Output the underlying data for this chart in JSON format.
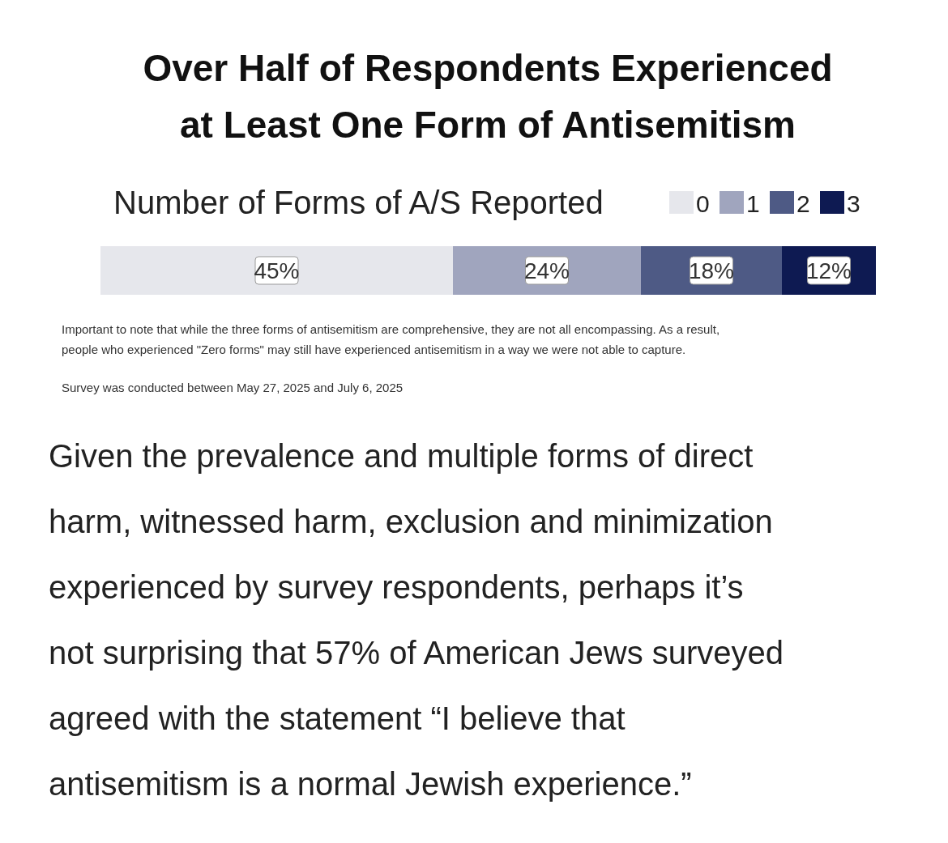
{
  "chart_data": {
    "type": "bar",
    "orientation": "horizontal",
    "stacked": true,
    "title": "Over Half of Respondents Experienced at Least One Form of Antisemitism",
    "legend_title": "Number of Forms of A/S Reported",
    "legend": "top",
    "categories": [
      null
    ],
    "series": [
      {
        "name": "0",
        "color": "#e6e7ec",
        "values": [
          45
        ],
        "value_labels": [
          "45%"
        ]
      },
      {
        "name": "1",
        "color": "#a0a5be",
        "values": [
          24
        ],
        "value_labels": [
          "24%"
        ]
      },
      {
        "name": "2",
        "color": "#4e5a85",
        "values": [
          18
        ],
        "value_labels": [
          "18%"
        ]
      },
      {
        "name": "3",
        "color": "#0e1a52",
        "values": [
          12
        ],
        "value_labels": [
          "12%"
        ]
      }
    ],
    "annotations": [
      "Important to note that while the three forms of antisemitism are comprehensive, they are not all encompassing. As a result, people who experienced \"Zero forms\" may still have experienced antisemitism in a way we were not able to capture.",
      "Survey was conducted between May 27, 2025 and July 6, 2025",
      "Given the prevalence and multiple forms of direct harm, witnessed harm, exclusion and minimization experienced by survey respondents, perhaps it’s not surprising that 57% of American Jews surveyed agreed with the statement “I believe that antisemitism is a normal Jewish experience.”"
    ]
  }
}
